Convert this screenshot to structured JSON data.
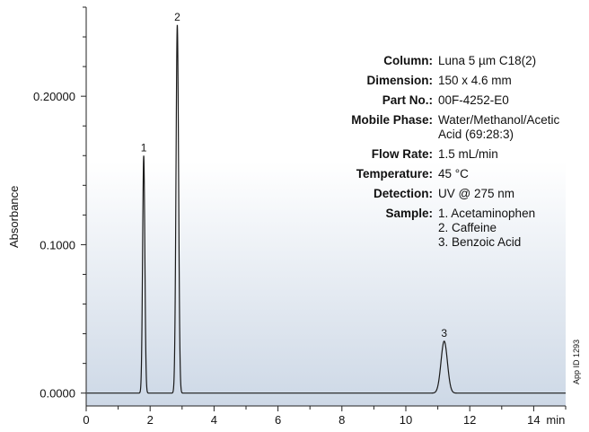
{
  "chart_data": {
    "type": "line",
    "title": "",
    "xlabel": "min",
    "ylabel": "Absorbance",
    "xlim": [
      0,
      15
    ],
    "ylim": [
      -0.002,
      0.26
    ],
    "x_ticks": [
      "0",
      "2",
      "4",
      "6",
      "8",
      "10",
      "12",
      "14"
    ],
    "x_tick_values": [
      0,
      2,
      4,
      6,
      8,
      10,
      12,
      14
    ],
    "x_unit_label": "min",
    "y_ticks": [
      "0.0000",
      "0.1000",
      "0.20000"
    ],
    "y_tick_values": [
      0.0,
      0.1,
      0.2
    ],
    "grid": false,
    "background": "gradient white-to-light-blue",
    "peaks": [
      {
        "label": "1",
        "retention_time": 1.8,
        "height": 0.16,
        "width": 0.035
      },
      {
        "label": "2",
        "retention_time": 2.85,
        "height": 0.248,
        "width": 0.04
      },
      {
        "label": "3",
        "retention_time": 11.2,
        "height": 0.035,
        "width": 0.1
      }
    ],
    "colors": {
      "trace": "#1a1a1a",
      "bg_top": "#ffffff",
      "bg_bottom": "#cdd8e6"
    }
  },
  "conditions": [
    {
      "label": "Column:",
      "value": [
        "Luna 5 µm C18(2)"
      ]
    },
    {
      "label": "Dimension:",
      "value": [
        "150  x  4.6 mm"
      ]
    },
    {
      "label": "Part No.:",
      "value": [
        "00F-4252-E0"
      ]
    },
    {
      "label": "Mobile Phase:",
      "value": [
        "Water/Methanol/Acetic",
        "Acid (69:28:3)"
      ]
    },
    {
      "label": "Flow Rate:",
      "value": [
        "1.5 mL/min"
      ]
    },
    {
      "label": "Temperature:",
      "value": [
        "45 °C"
      ]
    },
    {
      "label": "Detection:",
      "value": [
        "UV @ 275 nm"
      ]
    },
    {
      "label": "Sample:",
      "value": [
        "1. Acetaminophen",
        "2. Caffeine",
        "3. Benzoic Acid"
      ]
    }
  ],
  "app_id": "App ID 1293"
}
